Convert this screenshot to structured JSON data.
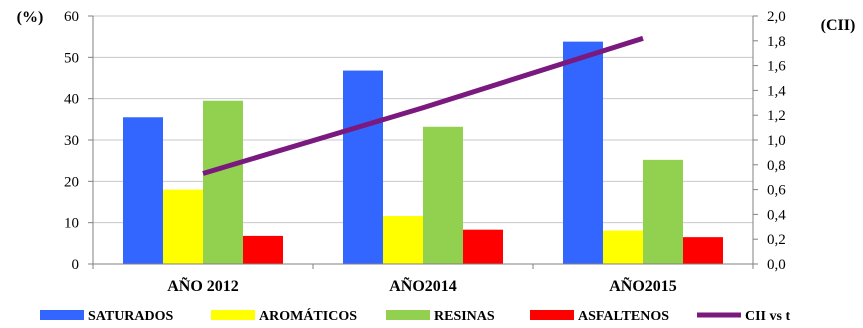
{
  "chart_data": {
    "type": "bar",
    "categories": [
      "AÑO 2012",
      "AÑO2014",
      "AÑO2015"
    ],
    "series": [
      {
        "name": "SATURADOS",
        "color": "#3366ff",
        "values": [
          35.5,
          46.8,
          53.8
        ]
      },
      {
        "name": "AROMÁTICOS",
        "color": "#ffff00",
        "values": [
          18.0,
          11.6,
          8.1
        ]
      },
      {
        "name": "RESINAS",
        "color": "#92d050",
        "values": [
          39.5,
          33.2,
          25.2
        ]
      },
      {
        "name": "ASFALTENOS",
        "color": "#ff0000",
        "values": [
          6.8,
          8.3,
          6.5
        ]
      }
    ],
    "line_series": {
      "name": "CII vs t",
      "color": "#7b1a7e",
      "axis": "right",
      "values": [
        0.73,
        1.26,
        1.82
      ]
    },
    "ylabel": "(%)",
    "y2label": "(CII)",
    "ylim": [
      0,
      60
    ],
    "y2lim": [
      0,
      2.0
    ],
    "yticks": [
      "0",
      "10",
      "20",
      "30",
      "40",
      "50",
      "60"
    ],
    "y2ticks": [
      "0,0",
      "0,2",
      "0,4",
      "0,6",
      "0,8",
      "1,0",
      "1,2",
      "1,4",
      "1,6",
      "1,8",
      "2,0"
    ],
    "grid": true,
    "legend_position": "bottom"
  }
}
